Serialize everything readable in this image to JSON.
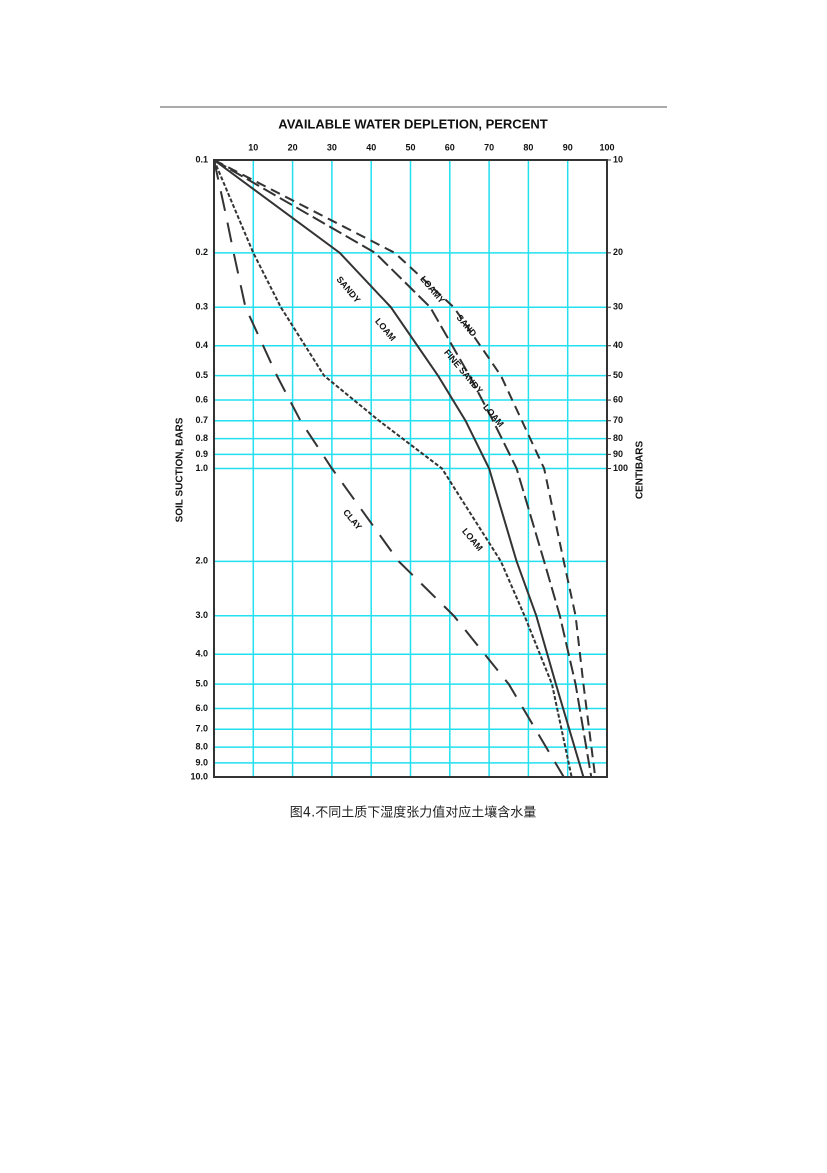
{
  "chart_data": {
    "type": "line",
    "title": "AVAILABLE WATER DEPLETION, PERCENT",
    "y_label": "SOIL SUCTION, BARS",
    "y2_label": "CENTIBARS",
    "xlim": [
      0,
      100
    ],
    "xticks": [
      10,
      20,
      30,
      40,
      50,
      60,
      70,
      80,
      90,
      100
    ],
    "ylim": [
      0.1,
      10
    ],
    "y_log": true,
    "y_inverted": true,
    "yticks": [
      0.1,
      0.2,
      0.3,
      0.4,
      0.5,
      0.6,
      0.7,
      0.8,
      0.9,
      {
        "value": 1,
        "label": "1.0"
      },
      {
        "value": 2,
        "label": "2.0"
      },
      {
        "value": 3,
        "label": "3.0"
      },
      {
        "value": 4,
        "label": "4.0"
      },
      {
        "value": 5,
        "label": "5.0"
      },
      {
        "value": 6,
        "label": "6.0"
      },
      {
        "value": 7,
        "label": "7.0"
      },
      {
        "value": 8,
        "label": "8.0"
      },
      {
        "value": 9,
        "label": "9.0"
      },
      {
        "value": 10,
        "label": "10.0"
      }
    ],
    "y2lim": [
      10,
      1000
    ],
    "y2ticks": [
      10,
      20,
      30,
      40,
      50,
      60,
      70,
      80,
      90,
      100
    ],
    "grid": true,
    "grid_color": "#22e0f0",
    "series": [
      {
        "label": [
          "LOAMY",
          "SAND"
        ],
        "color": "#333",
        "dash": "10 6",
        "x": [
          0,
          46,
          61,
          73,
          84,
          89,
          92,
          94,
          97
        ],
        "values": [
          0.1,
          0.2,
          0.3,
          0.5,
          1,
          2,
          3,
          5,
          10
        ]
      },
      {
        "label": [
          "FINE SANDY",
          "LOAM"
        ],
        "color": "#333",
        "dash": "14 5",
        "x": [
          0,
          41,
          55,
          65,
          71,
          77,
          84,
          88,
          92,
          96
        ],
        "values": [
          0.1,
          0.2,
          0.3,
          0.5,
          0.7,
          1,
          2,
          3,
          5,
          10
        ]
      },
      {
        "label": [
          "SANDY",
          "LOAM"
        ],
        "color": "#333",
        "dash": "none",
        "x": [
          0,
          32,
          45,
          57,
          64,
          70,
          77,
          82,
          87,
          94
        ],
        "values": [
          0.1,
          0.2,
          0.3,
          0.5,
          0.7,
          1,
          2,
          3,
          5,
          10
        ]
      },
      {
        "label": [
          "LOAM"
        ],
        "color": "#333",
        "dash": "4 2",
        "x": [
          0,
          10,
          17,
          28,
          42,
          58,
          73,
          79,
          86,
          91
        ],
        "values": [
          0.1,
          0.2,
          0.3,
          0.5,
          0.7,
          1,
          2,
          3,
          5,
          10
        ]
      },
      {
        "label": [
          "CLAY"
        ],
        "color": "#333",
        "dash": "20 12",
        "x": [
          0,
          3,
          5,
          8,
          16,
          22,
          30,
          47,
          61,
          75,
          89
        ],
        "values": [
          0.1,
          0.15,
          0.2,
          0.3,
          0.5,
          0.7,
          1,
          2,
          3,
          5,
          10
        ]
      }
    ]
  },
  "caption": "图4.不同土质下湿度张力值对应土壤含水量"
}
